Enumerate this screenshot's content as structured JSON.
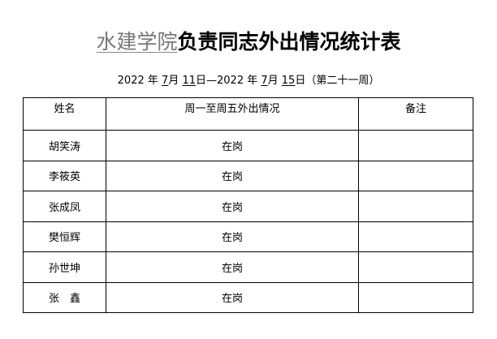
{
  "title": {
    "org": "水建学院",
    "rest": "负责同志外出情况统计表"
  },
  "subtitle": {
    "y1": "2022",
    "nian1": " 年 ",
    "m1": "7",
    "yue1": "月 ",
    "d1": "11",
    "ri1": "日—",
    "y2": "2022",
    "nian2": " 年 ",
    "m2": "7",
    "yue2": "月 ",
    "d2": "15",
    "ri2": "日（第二十一周）"
  },
  "table": {
    "headers": [
      "姓名",
      "周一至周五外出情况",
      "备注"
    ],
    "rows": [
      {
        "name": "胡笑涛",
        "status": "在岗",
        "note": ""
      },
      {
        "name": "李筱英",
        "status": "在岗",
        "note": ""
      },
      {
        "name": "张成凤",
        "status": "在岗",
        "note": ""
      },
      {
        "name": "樊恒辉",
        "status": "在岗",
        "note": ""
      },
      {
        "name": "孙世坤",
        "status": "在岗",
        "note": ""
      },
      {
        "name": "张　鑫",
        "status": "在岗",
        "note": ""
      }
    ]
  }
}
